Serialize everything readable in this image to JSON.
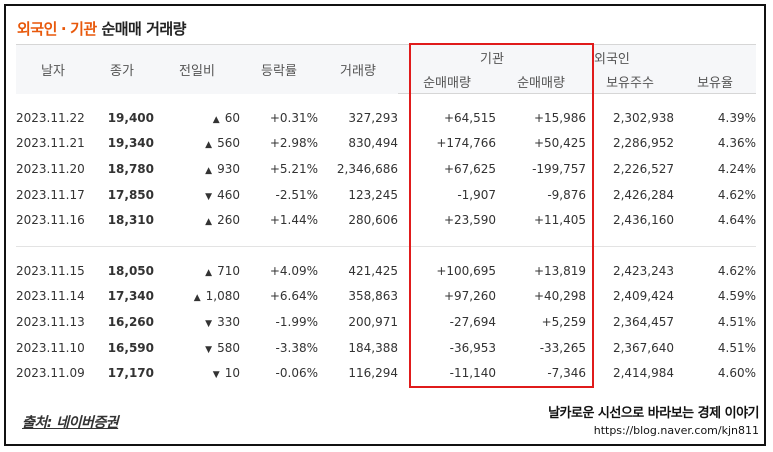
{
  "title": {
    "part1": "외국인",
    "sep": "·",
    "part2": "기관",
    "part3": "순매매 거래량"
  },
  "headers": {
    "date": "날자",
    "close": "종가",
    "change": "전일비",
    "rate": "등락률",
    "volume": "거래량",
    "institution": "기관",
    "foreigner": "외국인",
    "inst_net": "순매매량",
    "foreign_net": "순매매량",
    "holdings": "보유주수",
    "ratio": "보유율"
  },
  "rows": [
    {
      "date": "2023.11.22",
      "close": "19,400",
      "dir": "up",
      "change": "60",
      "rate": "+0.31%",
      "volume": "327,293",
      "inst": "+64,515",
      "foreign": "+15,986",
      "holdings": "2,302,938",
      "ratio": "4.39%"
    },
    {
      "date": "2023.11.21",
      "close": "19,340",
      "dir": "up",
      "change": "560",
      "rate": "+2.98%",
      "volume": "830,494",
      "inst": "+174,766",
      "foreign": "+50,425",
      "holdings": "2,286,952",
      "ratio": "4.36%"
    },
    {
      "date": "2023.11.20",
      "close": "18,780",
      "dir": "up",
      "change": "930",
      "rate": "+5.21%",
      "volume": "2,346,686",
      "inst": "+67,625",
      "foreign": "-199,757",
      "holdings": "2,226,527",
      "ratio": "4.24%"
    },
    {
      "date": "2023.11.17",
      "close": "17,850",
      "dir": "down",
      "change": "460",
      "rate": "-2.51%",
      "volume": "123,245",
      "inst": "-1,907",
      "foreign": "-9,876",
      "holdings": "2,426,284",
      "ratio": "4.62%"
    },
    {
      "date": "2023.11.16",
      "close": "18,310",
      "dir": "up",
      "change": "260",
      "rate": "+1.44%",
      "volume": "280,606",
      "inst": "+23,590",
      "foreign": "+11,405",
      "holdings": "2,436,160",
      "ratio": "4.64%"
    },
    {
      "date": "2023.11.15",
      "close": "18,050",
      "dir": "up",
      "change": "710",
      "rate": "+4.09%",
      "volume": "421,425",
      "inst": "+100,695",
      "foreign": "+13,819",
      "holdings": "2,423,243",
      "ratio": "4.62%"
    },
    {
      "date": "2023.11.14",
      "close": "17,340",
      "dir": "up",
      "change": "1,080",
      "rate": "+6.64%",
      "volume": "358,863",
      "inst": "+97,260",
      "foreign": "+40,298",
      "holdings": "2,409,424",
      "ratio": "4.59%"
    },
    {
      "date": "2023.11.13",
      "close": "16,260",
      "dir": "down",
      "change": "330",
      "rate": "-1.99%",
      "volume": "200,971",
      "inst": "-27,694",
      "foreign": "+5,259",
      "holdings": "2,364,457",
      "ratio": "4.51%"
    },
    {
      "date": "2023.11.10",
      "close": "16,590",
      "dir": "down",
      "change": "580",
      "rate": "-3.38%",
      "volume": "184,388",
      "inst": "-36,953",
      "foreign": "-33,265",
      "holdings": "2,367,640",
      "ratio": "4.51%"
    },
    {
      "date": "2023.11.09",
      "close": "17,170",
      "dir": "down",
      "change": "10",
      "rate": "-0.06%",
      "volume": "116,294",
      "inst": "-11,140",
      "foreign": "-7,346",
      "holdings": "2,414,984",
      "ratio": "4.60%"
    }
  ],
  "footer": {
    "source": "출처: 네이버증권",
    "blog_title": "날카로운 시선으로 바라보는 경제 이야기",
    "blog_url": "https://blog.naver.com/kjn811"
  },
  "colors": {
    "up": "#e01b1b",
    "down": "#1a5fd6",
    "highlight_box": "#e01b1b",
    "title_accent": "#e8590c"
  }
}
